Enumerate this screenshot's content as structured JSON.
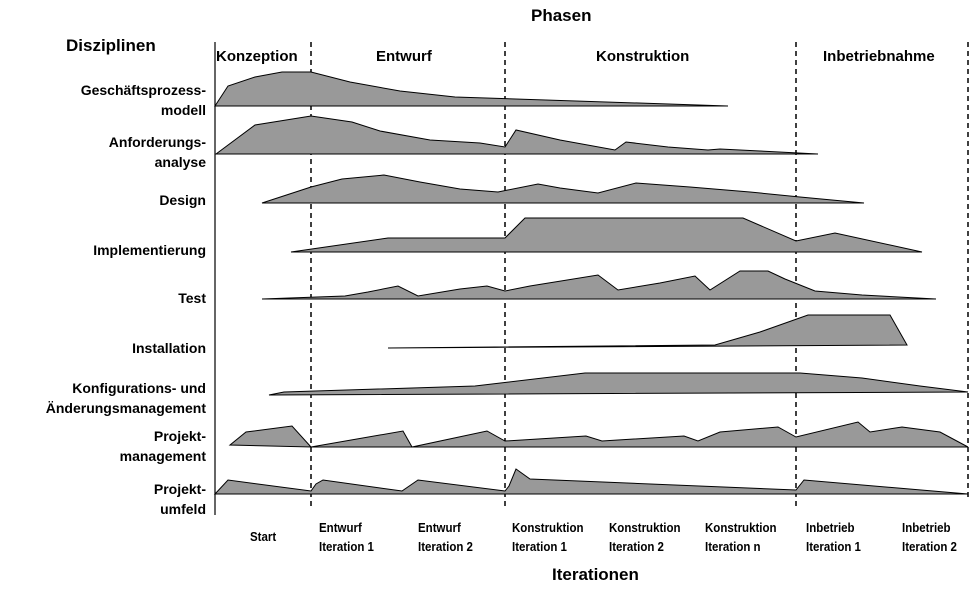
{
  "header": {
    "phases_title": "Phasen",
    "disciplines_title": "Disziplinen",
    "iterations_title": "Iterationen"
  },
  "phases": [
    {
      "id": "konzeption",
      "label": "Konzeption"
    },
    {
      "id": "entwurf",
      "label": "Entwurf"
    },
    {
      "id": "konstruktion",
      "label": "Konstruktion"
    },
    {
      "id": "inbetriebnahme",
      "label": "Inbetriebnahme"
    }
  ],
  "disciplines": [
    {
      "id": "geschaeftsprozessmodell",
      "lines": [
        "Geschäftsprozess-",
        "modell"
      ]
    },
    {
      "id": "anforderungsanalyse",
      "lines": [
        "Anforderungs-",
        "analyse"
      ]
    },
    {
      "id": "design",
      "lines": [
        "Design"
      ]
    },
    {
      "id": "implementierung",
      "lines": [
        "Implementierung"
      ]
    },
    {
      "id": "test",
      "lines": [
        "Test"
      ]
    },
    {
      "id": "installation",
      "lines": [
        "Installation"
      ]
    },
    {
      "id": "konfigurationsmanagement",
      "lines": [
        "Konfigurations- und",
        "Änderungsmanagement"
      ]
    },
    {
      "id": "projektmanagement",
      "lines": [
        "Projekt-",
        "management"
      ]
    },
    {
      "id": "projektumfeld",
      "lines": [
        "Projekt-",
        "umfeld"
      ]
    }
  ],
  "iterations": [
    {
      "id": "start",
      "lines": [
        "Start"
      ]
    },
    {
      "id": "entwurf-1",
      "lines": [
        "Entwurf",
        "Iteration 1"
      ]
    },
    {
      "id": "entwurf-2",
      "lines": [
        "Entwurf",
        "Iteration 2"
      ]
    },
    {
      "id": "konstruktion-1",
      "lines": [
        "Konstruktion",
        "Iteration 1"
      ]
    },
    {
      "id": "konstruktion-2",
      "lines": [
        "Konstruktion",
        "Iteration 2"
      ]
    },
    {
      "id": "konstruktion-n",
      "lines": [
        "Konstruktion",
        "Iteration n"
      ]
    },
    {
      "id": "inbetrieb-1",
      "lines": [
        "Inbetrieb",
        "Iteration 1"
      ]
    },
    {
      "id": "inbetrieb-2",
      "lines": [
        "Inbetrieb",
        "Iteration 2"
      ]
    }
  ],
  "colors": {
    "area_fill": "#999999",
    "line": "#000000",
    "background": "#ffffff"
  }
}
